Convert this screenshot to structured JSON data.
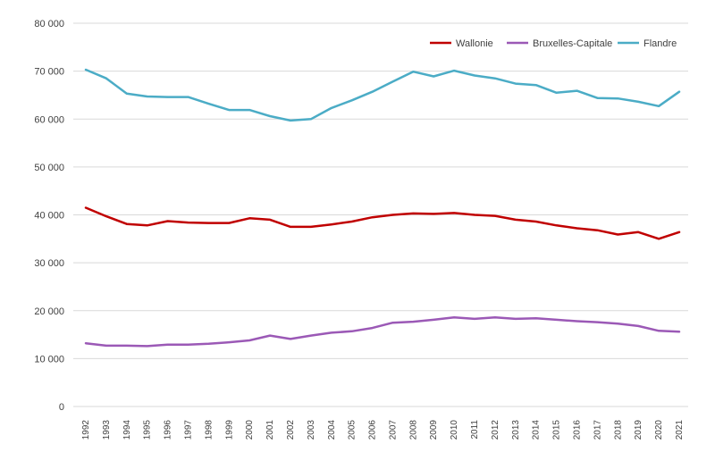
{
  "chart_data": {
    "type": "line",
    "title": "",
    "xlabel": "",
    "ylabel": "",
    "categories": [
      "1992",
      "1993",
      "1994",
      "1995",
      "1996",
      "1997",
      "1998",
      "1999",
      "2000",
      "2001",
      "2002",
      "2003",
      "2004",
      "2005",
      "2006",
      "2007",
      "2008",
      "2009",
      "2010",
      "2011",
      "2012",
      "2013",
      "2014",
      "2015",
      "2016",
      "2017",
      "2018",
      "2019",
      "2020",
      "2021"
    ],
    "ylim": [
      0,
      80000
    ],
    "yticks": [
      0,
      10000,
      20000,
      30000,
      40000,
      50000,
      60000,
      70000,
      80000
    ],
    "ytick_labels": [
      "0",
      "10 000",
      "20 000",
      "30 000",
      "40 000",
      "50 000",
      "60 000",
      "70 000",
      "80 000"
    ],
    "grid": true,
    "legend_position": "top-right",
    "series": [
      {
        "name": "Wallonie",
        "color": "#c00000",
        "values": [
          41500,
          39700,
          38100,
          37800,
          38700,
          38400,
          38300,
          38300,
          39300,
          39000,
          37500,
          37500,
          38000,
          38600,
          39500,
          40000,
          40300,
          40200,
          40400,
          40000,
          39800,
          39000,
          38600,
          37800,
          37200,
          36800,
          35900,
          36400,
          35000,
          36400
        ]
      },
      {
        "name": "Bruxelles-Capitale",
        "color": "#9b59b6",
        "values": [
          13200,
          12700,
          12700,
          12600,
          12900,
          12900,
          13100,
          13400,
          13800,
          14800,
          14100,
          14800,
          15400,
          15700,
          16400,
          17500,
          17700,
          18100,
          18600,
          18300,
          18600,
          18300,
          18400,
          18100,
          17800,
          17600,
          17300,
          16800,
          15800,
          15600
        ]
      },
      {
        "name": "Flandre",
        "color": "#4bacc6",
        "values": [
          70300,
          68500,
          65300,
          64700,
          64600,
          64600,
          63200,
          61900,
          61900,
          60600,
          59700,
          60000,
          62300,
          63900,
          65700,
          67800,
          69900,
          68900,
          70100,
          69100,
          68500,
          67400,
          67100,
          65500,
          65900,
          64400,
          64300,
          63600,
          62700,
          65700
        ]
      }
    ]
  }
}
